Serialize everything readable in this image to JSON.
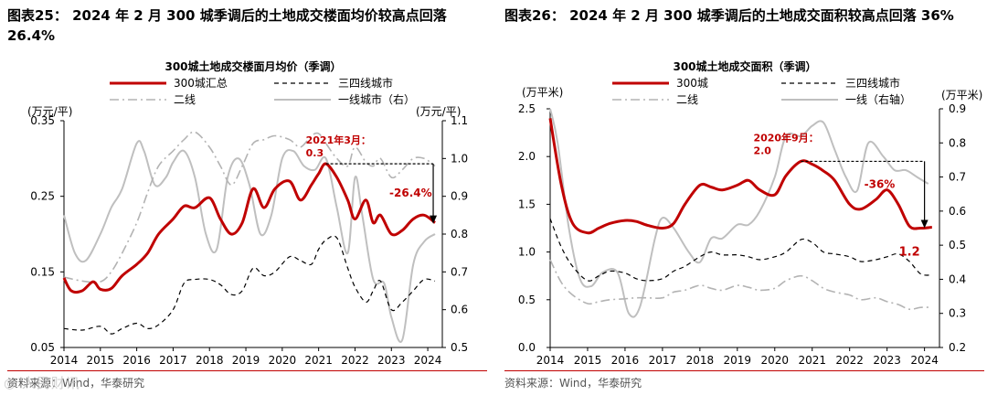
{
  "colors": {
    "red": "#c00000",
    "black": "#000000",
    "gray": "#bfbfbf",
    "grayDash": "#b3b3b3",
    "accent": "#c00000"
  },
  "panels": [
    {
      "title": "图表25： 2024 年 2 月 300 城季调后的土地成交楼面均价较高点回落 26.4%",
      "source": "资料来源：Wind，华泰研究"
    },
    {
      "title": "图表26： 2024 年 2 月 300 城季调后的土地成交面积较高点回落 36%",
      "source": "资料来源：Wind，华泰研究"
    }
  ],
  "watermark": "人民财讯",
  "chart_data": [
    {
      "type": "line",
      "title": "300城土地成交楼面月均价（季调）",
      "ylabel_left": "(万元/平)",
      "ylabel_right": "(万元/平)",
      "x_ticks": [
        "2014",
        "2015",
        "2016",
        "2017",
        "2018",
        "2019",
        "2020",
        "2021",
        "2022",
        "2023",
        "2024"
      ],
      "x_range": [
        2014,
        2024.4
      ],
      "y_left": {
        "range": [
          0.05,
          0.35
        ],
        "ticks": [
          "0.05",
          "0.15",
          "0.25",
          "0.35"
        ]
      },
      "y_right": {
        "range": [
          0.5,
          1.1
        ],
        "ticks": [
          "0.5",
          "0.6",
          "0.7",
          "0.8",
          "0.9",
          "1.0",
          "1.1"
        ]
      },
      "legend": [
        "300城汇总",
        "三四线城市",
        "二线",
        "一线城市（右）"
      ],
      "annotations": {
        "peak_label": "2021年3月：",
        "peak_value": "0.3",
        "drop": "-26.4%",
        "peak_x": 2021.2,
        "peak_y": 0.293,
        "end_x": 2024.15
      },
      "series": [
        {
          "name": "300城汇总",
          "axis": "left",
          "style": "red",
          "x": [
            2014,
            2014.2,
            2014.5,
            2014.8,
            2015,
            2015.3,
            2015.6,
            2016,
            2016.3,
            2016.6,
            2017,
            2017.3,
            2017.6,
            2018,
            2018.3,
            2018.6,
            2018.9,
            2019.2,
            2019.5,
            2019.8,
            2020.2,
            2020.5,
            2020.8,
            2021,
            2021.2,
            2021.5,
            2021.8,
            2022,
            2022.3,
            2022.5,
            2022.7,
            2023,
            2023.3,
            2023.6,
            2023.9,
            2024.2
          ],
          "y": [
            0.142,
            0.125,
            0.125,
            0.137,
            0.127,
            0.128,
            0.145,
            0.16,
            0.175,
            0.2,
            0.22,
            0.237,
            0.235,
            0.248,
            0.22,
            0.2,
            0.215,
            0.26,
            0.235,
            0.26,
            0.27,
            0.245,
            0.265,
            0.28,
            0.293,
            0.275,
            0.245,
            0.22,
            0.245,
            0.215,
            0.225,
            0.2,
            0.205,
            0.22,
            0.225,
            0.215
          ]
        },
        {
          "name": "三四线城市",
          "axis": "left",
          "style": "black-dash",
          "x": [
            2014,
            2014.5,
            2015,
            2015.3,
            2015.6,
            2016,
            2016.3,
            2016.6,
            2017,
            2017.3,
            2017.6,
            2018,
            2018.3,
            2018.6,
            2018.9,
            2019.2,
            2019.5,
            2019.8,
            2020.2,
            2020.5,
            2020.8,
            2021,
            2021.2,
            2021.5,
            2021.8,
            2022,
            2022.3,
            2022.5,
            2022.7,
            2023,
            2023.3,
            2023.6,
            2023.9,
            2024.2
          ],
          "y": [
            0.075,
            0.073,
            0.078,
            0.068,
            0.075,
            0.082,
            0.075,
            0.08,
            0.1,
            0.135,
            0.14,
            0.14,
            0.133,
            0.12,
            0.125,
            0.155,
            0.145,
            0.15,
            0.17,
            0.165,
            0.16,
            0.18,
            0.192,
            0.195,
            0.155,
            0.13,
            0.11,
            0.125,
            0.138,
            0.1,
            0.11,
            0.125,
            0.14,
            0.138
          ]
        },
        {
          "name": "二线",
          "axis": "left",
          "style": "gray-dashdot",
          "x": [
            2014,
            2014.5,
            2015,
            2015.3,
            2015.6,
            2016,
            2016.3,
            2016.6,
            2017,
            2017.3,
            2017.6,
            2018,
            2018.3,
            2018.6,
            2018.9,
            2019.2,
            2019.5,
            2019.8,
            2020.2,
            2020.5,
            2020.8,
            2021,
            2021.2,
            2021.5,
            2021.8,
            2022,
            2022.3,
            2022.5,
            2022.7,
            2023,
            2023.3,
            2023.6,
            2023.9,
            2024.2
          ],
          "y": [
            0.143,
            0.138,
            0.137,
            0.15,
            0.175,
            0.215,
            0.255,
            0.29,
            0.31,
            0.325,
            0.335,
            0.315,
            0.29,
            0.265,
            0.29,
            0.32,
            0.325,
            0.33,
            0.325,
            0.315,
            0.33,
            0.333,
            0.32,
            0.3,
            0.29,
            0.315,
            0.295,
            0.29,
            0.3,
            0.275,
            0.285,
            0.3,
            0.3,
            0.29
          ]
        },
        {
          "name": "一线城市（右）",
          "axis": "right",
          "style": "gray",
          "x": [
            2014,
            2014.3,
            2014.6,
            2015,
            2015.3,
            2015.6,
            2016,
            2016.2,
            2016.5,
            2016.8,
            2017,
            2017.3,
            2017.6,
            2017.9,
            2018.2,
            2018.5,
            2018.8,
            2019.1,
            2019.4,
            2019.7,
            2020,
            2020.3,
            2020.6,
            2020.9,
            2021.2,
            2021.5,
            2021.8,
            2022,
            2022.2,
            2022.5,
            2022.8,
            2023,
            2023.3,
            2023.6,
            2023.9,
            2024.2
          ],
          "y": [
            0.85,
            0.75,
            0.73,
            0.8,
            0.87,
            0.92,
            1.04,
            1.02,
            0.93,
            0.95,
            0.99,
            1.02,
            0.95,
            0.8,
            0.76,
            0.95,
            1.0,
            0.93,
            0.8,
            0.85,
            1.0,
            1.02,
            0.98,
            0.97,
            1.0,
            0.87,
            0.75,
            0.95,
            0.85,
            0.68,
            0.67,
            0.58,
            0.52,
            0.72,
            0.78,
            0.8
          ]
        }
      ]
    },
    {
      "type": "line",
      "title": "300城土地成交面积（季调）",
      "ylabel_left": "(万平米)",
      "ylabel_right": "(万平米)",
      "x_ticks": [
        "2014",
        "2015",
        "2016",
        "2017",
        "2018",
        "2019",
        "2020",
        "2021",
        "2022",
        "2023",
        "2024"
      ],
      "x_range": [
        2014,
        2024.4
      ],
      "y_left": {
        "range": [
          0.0,
          2.5
        ],
        "ticks": [
          "0.0",
          "0.5",
          "1.0",
          "1.5",
          "2.0",
          "2.5"
        ]
      },
      "y_right": {
        "range": [
          0.2,
          0.9
        ],
        "ticks": [
          "0.2",
          "0.3",
          "0.4",
          "0.5",
          "0.6",
          "0.7",
          "0.8",
          "0.9"
        ]
      },
      "legend": [
        "300城",
        "三四线城市",
        "二线",
        "一线（右轴）"
      ],
      "annotations": {
        "peak_label": "2020年9月：",
        "peak_value": "2.0",
        "drop": "-36%",
        "end_label": "1.2",
        "peak_x": 2020.7,
        "peak_y": 1.95,
        "end_x": 2024.0
      },
      "series": [
        {
          "name": "300城",
          "axis": "left",
          "style": "red",
          "x": [
            2014,
            2014.3,
            2014.6,
            2015,
            2015.3,
            2015.6,
            2016,
            2016.3,
            2016.6,
            2017,
            2017.3,
            2017.6,
            2018,
            2018.3,
            2018.6,
            2019,
            2019.3,
            2019.6,
            2020,
            2020.3,
            2020.7,
            2021,
            2021.3,
            2021.6,
            2022,
            2022.3,
            2022.7,
            2023,
            2023.3,
            2023.6,
            2023.9,
            2024.2
          ],
          "y": [
            2.4,
            1.7,
            1.3,
            1.2,
            1.25,
            1.3,
            1.33,
            1.32,
            1.28,
            1.25,
            1.3,
            1.5,
            1.7,
            1.68,
            1.65,
            1.7,
            1.75,
            1.65,
            1.6,
            1.8,
            1.95,
            1.92,
            1.85,
            1.75,
            1.5,
            1.45,
            1.55,
            1.65,
            1.5,
            1.27,
            1.25,
            1.26
          ]
        },
        {
          "name": "三四线城市",
          "axis": "left",
          "style": "black-dash",
          "x": [
            2014,
            2014.3,
            2014.6,
            2015,
            2015.3,
            2015.6,
            2016,
            2016.3,
            2016.6,
            2017,
            2017.3,
            2017.6,
            2018,
            2018.3,
            2018.6,
            2019,
            2019.3,
            2019.6,
            2020,
            2020.3,
            2020.7,
            2021,
            2021.3,
            2021.6,
            2022,
            2022.3,
            2022.7,
            2023,
            2023.3,
            2023.6,
            2023.9,
            2024.2
          ],
          "y": [
            1.35,
            1.05,
            0.85,
            0.7,
            0.75,
            0.8,
            0.78,
            0.72,
            0.7,
            0.72,
            0.8,
            0.85,
            0.95,
            1.0,
            0.97,
            0.97,
            0.95,
            0.92,
            0.95,
            1.0,
            1.13,
            1.1,
            1.0,
            0.98,
            0.95,
            0.9,
            0.92,
            0.95,
            0.98,
            0.9,
            0.77,
            0.76
          ]
        },
        {
          "name": "二线",
          "axis": "left",
          "style": "gray-dashdot",
          "x": [
            2014,
            2014.3,
            2014.6,
            2015,
            2015.3,
            2015.6,
            2016,
            2016.3,
            2016.6,
            2017,
            2017.3,
            2017.6,
            2018,
            2018.3,
            2018.6,
            2019,
            2019.3,
            2019.6,
            2020,
            2020.3,
            2020.7,
            2021,
            2021.3,
            2021.6,
            2022,
            2022.3,
            2022.7,
            2023,
            2023.3,
            2023.6,
            2023.9,
            2024.2
          ],
          "y": [
            0.92,
            0.68,
            0.55,
            0.46,
            0.48,
            0.5,
            0.51,
            0.52,
            0.52,
            0.52,
            0.58,
            0.6,
            0.65,
            0.62,
            0.6,
            0.65,
            0.63,
            0.6,
            0.62,
            0.7,
            0.75,
            0.7,
            0.62,
            0.58,
            0.55,
            0.5,
            0.52,
            0.48,
            0.45,
            0.4,
            0.42,
            0.42
          ]
        },
        {
          "name": "一线（右轴）",
          "axis": "right",
          "style": "gray",
          "x": [
            2014,
            2014.2,
            2014.5,
            2014.8,
            2015.1,
            2015.4,
            2015.8,
            2016.1,
            2016.4,
            2016.8,
            2017,
            2017.3,
            2017.7,
            2018,
            2018.3,
            2018.6,
            2019,
            2019.3,
            2019.6,
            2020,
            2020.3,
            2020.7,
            2021,
            2021.3,
            2021.6,
            2021.9,
            2022.2,
            2022.5,
            2022.9,
            2023.2,
            2023.5,
            2023.8,
            2024.1
          ],
          "y": [
            0.9,
            0.8,
            0.55,
            0.4,
            0.38,
            0.42,
            0.42,
            0.3,
            0.32,
            0.52,
            0.58,
            0.55,
            0.48,
            0.45,
            0.52,
            0.52,
            0.56,
            0.56,
            0.6,
            0.7,
            0.82,
            0.82,
            0.85,
            0.86,
            0.78,
            0.7,
            0.66,
            0.8,
            0.76,
            0.72,
            0.72,
            0.7,
            0.68
          ]
        }
      ]
    }
  ]
}
